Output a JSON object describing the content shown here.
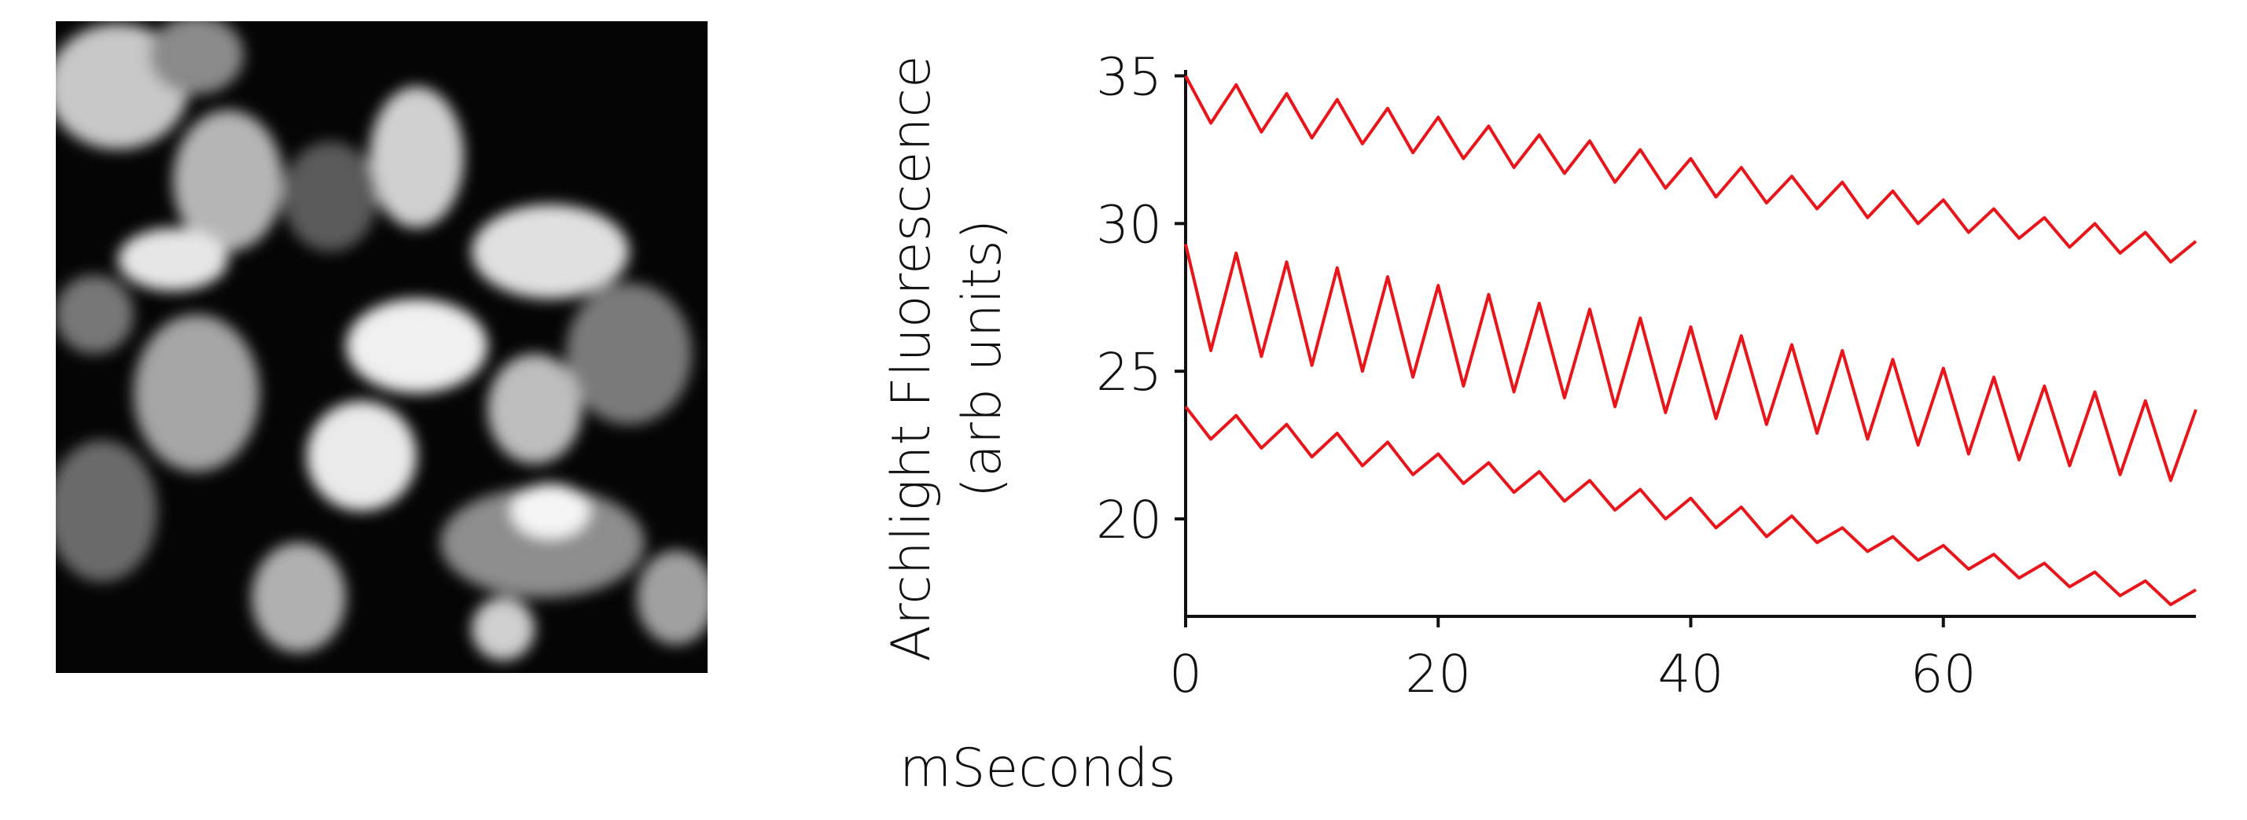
{
  "chart_data": {
    "type": "line",
    "xlabel": "mSeconds",
    "ylabel": [
      "Archlight Fluorescence",
      "(arb units)"
    ],
    "x": [
      0,
      2,
      4,
      6,
      8,
      10,
      12,
      14,
      16,
      18,
      20,
      22,
      24,
      26,
      28,
      30,
      32,
      34,
      36,
      38,
      40,
      42,
      44,
      46,
      48,
      50,
      52,
      54,
      56,
      58,
      60,
      62,
      64,
      66,
      68,
      70,
      72,
      74,
      76,
      78,
      80
    ],
    "series": [
      {
        "color": "#e8161b",
        "values": [
          35.0,
          33.4,
          34.7,
          33.1,
          34.4,
          32.9,
          34.2,
          32.7,
          33.9,
          32.4,
          33.6,
          32.2,
          33.3,
          31.9,
          33.0,
          31.7,
          32.8,
          31.4,
          32.5,
          31.2,
          32.2,
          30.9,
          31.9,
          30.7,
          31.6,
          30.5,
          31.4,
          30.2,
          31.1,
          30.0,
          30.8,
          29.7,
          30.5,
          29.5,
          30.2,
          29.2,
          30.0,
          29.0,
          29.7,
          28.7,
          29.4
        ]
      },
      {
        "color": "#e8161b",
        "values": [
          29.3,
          25.7,
          29.0,
          25.5,
          28.7,
          25.2,
          28.5,
          25.0,
          28.2,
          24.8,
          27.9,
          24.5,
          27.6,
          24.3,
          27.3,
          24.1,
          27.1,
          23.8,
          26.8,
          23.6,
          26.5,
          23.4,
          26.2,
          23.2,
          25.9,
          22.9,
          25.7,
          22.7,
          25.4,
          22.5,
          25.1,
          22.2,
          24.8,
          22.0,
          24.5,
          21.8,
          24.3,
          21.5,
          24.0,
          21.3,
          23.7
        ]
      },
      {
        "color": "#e8161b",
        "values": [
          23.8,
          22.7,
          23.5,
          22.4,
          23.2,
          22.1,
          22.9,
          21.8,
          22.6,
          21.5,
          22.2,
          21.2,
          21.9,
          20.9,
          21.6,
          20.6,
          21.3,
          20.3,
          21.0,
          20.0,
          20.7,
          19.7,
          20.4,
          19.4,
          20.1,
          19.2,
          19.7,
          18.9,
          19.4,
          18.6,
          19.1,
          18.3,
          18.8,
          18.0,
          18.5,
          17.7,
          18.2,
          17.4,
          17.9,
          17.1,
          17.6
        ]
      }
    ],
    "xlim": [
      0,
      80
    ],
    "xticks": [
      0,
      20,
      40,
      60
    ],
    "ylim": [
      16.7,
      35.2
    ],
    "yticks": [
      20,
      25,
      30,
      35
    ]
  }
}
